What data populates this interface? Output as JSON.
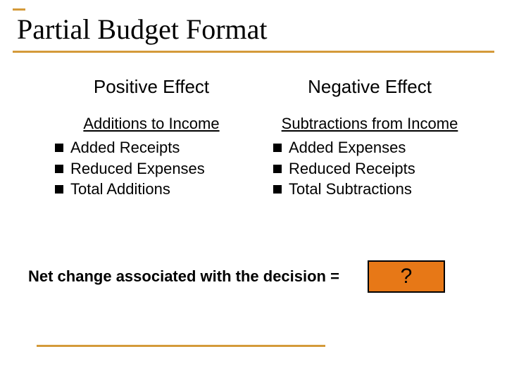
{
  "colors": {
    "accent": "#d49a3a",
    "result_box_fill": "#e77817",
    "result_box_border": "#000000",
    "text": "#000000",
    "background": "#ffffff"
  },
  "title": "Partial Budget Format",
  "positive": {
    "header": "Positive Effect",
    "subheader": "Additions to Income",
    "items": [
      "Added Receipts",
      "Reduced Expenses",
      "Total Additions"
    ]
  },
  "negative": {
    "header": "Negative Effect",
    "subheader": "Subtractions from Income",
    "items": [
      "Added Expenses",
      "Reduced Receipts",
      "Total Subtractions"
    ]
  },
  "net_label": "Net change associated with the decision =",
  "result_value": "?"
}
